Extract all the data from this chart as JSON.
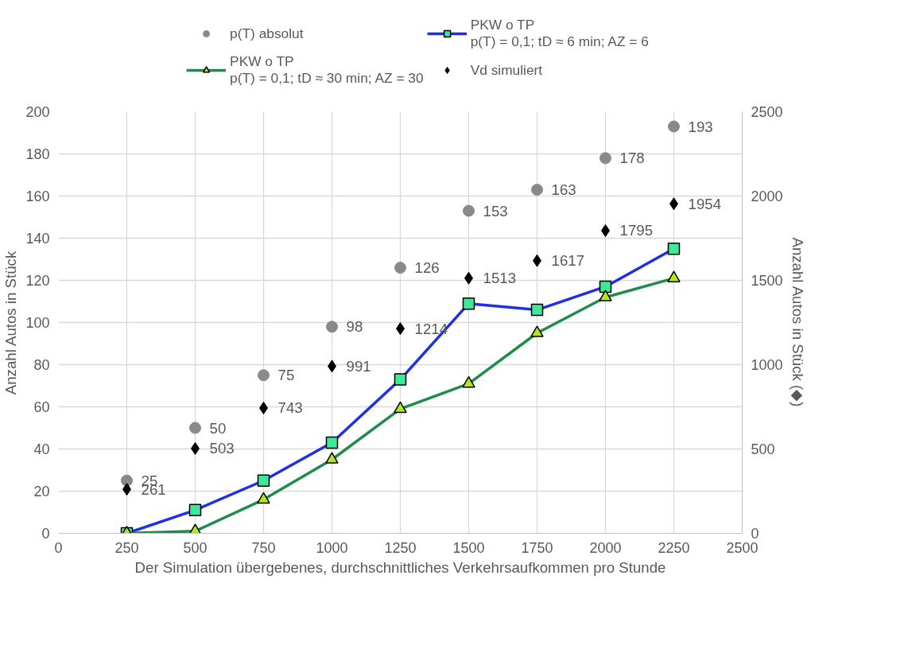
{
  "chart_data": {
    "type": "line",
    "xlabel": "Der Simulation übergebenes, durchschnittliches Verkehrsaufkommen pro Stunde",
    "ylabel": "Anzahl Autos in Stück",
    "y2label": "Anzahl Autos in Stück (◆)",
    "x": [
      250,
      500,
      750,
      1000,
      1250,
      1500,
      1750,
      2000,
      2250
    ],
    "xlim": [
      0,
      2500
    ],
    "xticks": [
      0,
      250,
      500,
      750,
      1000,
      1250,
      1500,
      1750,
      2000,
      2250,
      2500
    ],
    "ylim": [
      0,
      200
    ],
    "yticks": [
      0,
      20,
      40,
      60,
      80,
      100,
      120,
      140,
      160,
      180,
      200
    ],
    "y2lim": [
      0,
      2500
    ],
    "y2ticks": [
      0,
      500,
      1000,
      1500,
      2000,
      2500
    ],
    "grid": true,
    "legend": "top",
    "series": [
      {
        "name": "p(T) absolut",
        "type": "scatter",
        "marker": "circle",
        "color": "#898989",
        "data_labels": true,
        "values": [
          25,
          50,
          75,
          98,
          126,
          153,
          163,
          178,
          193
        ]
      },
      {
        "name": "PKW o TP\np(T) = 0,1; tD ≈ 6 min; AZ = 6",
        "marker": "square",
        "color": "#1f2ee8",
        "values": [
          0,
          11,
          25,
          43,
          73,
          109,
          106,
          117,
          135
        ]
      },
      {
        "name": "PKW o TP\np(T) = 0,1; tD ≈ 30 min; AZ = 30",
        "marker": "triangle",
        "color": "#1e8c4a",
        "values": [
          0,
          1,
          16,
          35,
          59,
          71,
          95,
          112,
          121
        ]
      },
      {
        "name": "Vd simuliert",
        "type": "scatter",
        "marker": "diamond",
        "color": "#000000",
        "axis": "y2",
        "data_labels": true,
        "values": [
          261,
          503,
          743,
          991,
          1214,
          1513,
          1617,
          1795,
          1954
        ]
      }
    ]
  }
}
